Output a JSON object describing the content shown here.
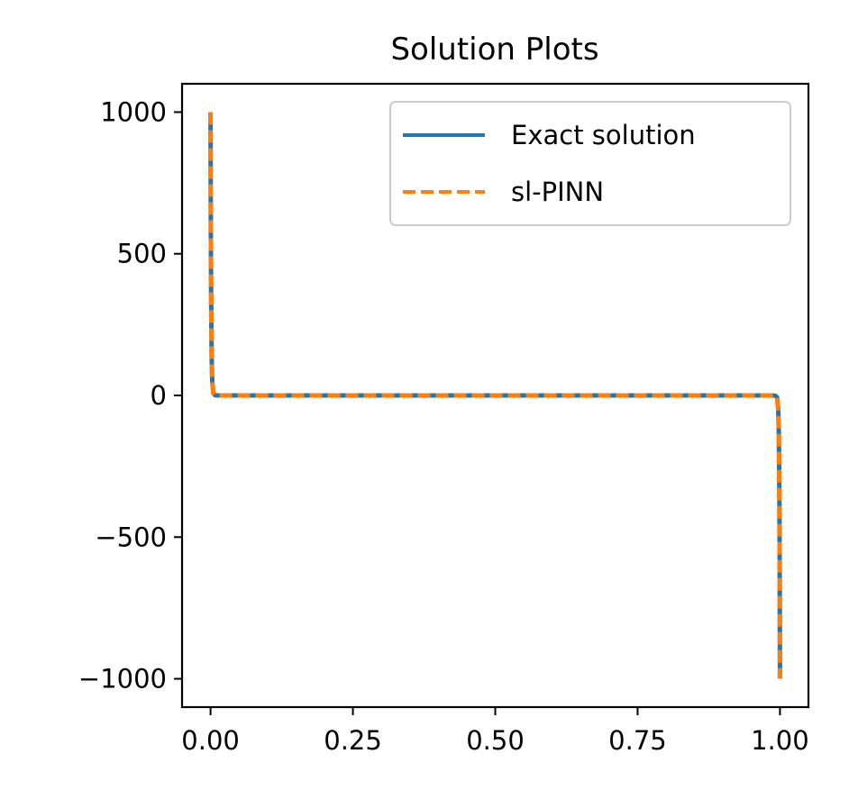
{
  "chart_data": {
    "type": "line",
    "title": "Solution Plots",
    "xlabel": "",
    "ylabel": "",
    "xlim": [
      -0.05,
      1.05
    ],
    "ylim": [
      -1100,
      1100
    ],
    "x_ticks": [
      0.0,
      0.25,
      0.5,
      0.75,
      1.0
    ],
    "x_tick_labels": [
      "0.00",
      "0.25",
      "0.50",
      "0.75",
      "1.00"
    ],
    "y_ticks": [
      1000,
      500,
      0,
      -500,
      -1000
    ],
    "y_tick_labels": [
      "1000",
      "500",
      "0",
      "−500",
      "−1000"
    ],
    "grid": false,
    "legend_position": "top-right",
    "series": [
      {
        "name": "Exact solution",
        "color": "#1f77b4",
        "style": "solid",
        "x": [
          0.0,
          0.0005,
          0.001,
          0.002,
          0.003,
          0.005,
          0.008,
          0.012,
          0.02,
          0.05,
          0.25,
          0.5,
          0.75,
          0.95,
          0.98,
          0.988,
          0.992,
          0.995,
          0.997,
          0.998,
          0.999,
          0.9995,
          1.0
        ],
        "y": [
          1000,
          600,
          370,
          135,
          50,
          7,
          1,
          0.1,
          0,
          0,
          0,
          0,
          0,
          0,
          -0.01,
          -0.1,
          -1,
          -7,
          -50,
          -135,
          -370,
          -600,
          -1000
        ]
      },
      {
        "name": "sl-PINN",
        "color": "#ff7f0e",
        "style": "dashed",
        "x": [
          0.0,
          0.0005,
          0.001,
          0.002,
          0.003,
          0.005,
          0.008,
          0.012,
          0.02,
          0.05,
          0.25,
          0.5,
          0.75,
          0.95,
          0.98,
          0.988,
          0.992,
          0.995,
          0.997,
          0.998,
          0.999,
          0.9995,
          1.0
        ],
        "y": [
          1000,
          600,
          370,
          135,
          50,
          7,
          1,
          0.1,
          0,
          0,
          0,
          0,
          0,
          0,
          -0.01,
          -0.1,
          -1,
          -7,
          -50,
          -135,
          -370,
          -600,
          -1000
        ]
      }
    ]
  }
}
